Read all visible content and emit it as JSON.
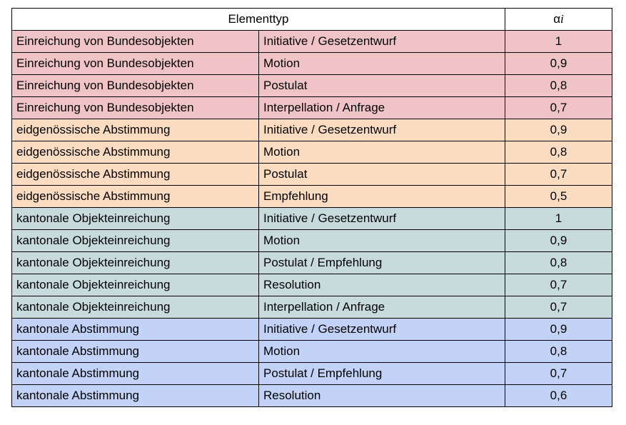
{
  "header": {
    "element_type": "Elementtyp",
    "alpha": "α",
    "alpha_sub": "i"
  },
  "groups": [
    {
      "name": "Einreichung von Bundesobjekten",
      "color": "#f0c4c6"
    },
    {
      "name": "eidgenössische Abstimmung",
      "color": "#fbdcc0"
    },
    {
      "name": "kantonale Objekteinreichung",
      "color": "#c8dbdc"
    },
    {
      "name": "kantonale Abstimmung",
      "color": "#c2d3f7"
    }
  ],
  "rows": [
    {
      "group": 0,
      "category": "Einreichung von Bundesobjekten",
      "type": "Initiative / Gesetzentwurf",
      "alpha": "1"
    },
    {
      "group": 0,
      "category": "Einreichung von Bundesobjekten",
      "type": "Motion",
      "alpha": "0,9"
    },
    {
      "group": 0,
      "category": "Einreichung von Bundesobjekten",
      "type": "Postulat",
      "alpha": "0,8"
    },
    {
      "group": 0,
      "category": "Einreichung von Bundesobjekten",
      "type": "Interpellation / Anfrage",
      "alpha": "0,7"
    },
    {
      "group": 1,
      "category": "eidgenössische Abstimmung",
      "type": "Initiative / Gesetzentwurf",
      "alpha": "0,9"
    },
    {
      "group": 1,
      "category": "eidgenössische Abstimmung",
      "type": "Motion",
      "alpha": "0,8"
    },
    {
      "group": 1,
      "category": "eidgenössische Abstimmung",
      "type": "Postulat",
      "alpha": "0,7"
    },
    {
      "group": 1,
      "category": "eidgenössische Abstimmung",
      "type": "Empfehlung",
      "alpha": "0,5"
    },
    {
      "group": 2,
      "category": "kantonale Objekteinreichung",
      "type": "Initiative / Gesetzentwurf",
      "alpha": "1"
    },
    {
      "group": 2,
      "category": "kantonale Objekteinreichung",
      "type": "Motion",
      "alpha": "0,9"
    },
    {
      "group": 2,
      "category": "kantonale Objekteinreichung",
      "type": "Postulat / Empfehlung",
      "alpha": "0,8"
    },
    {
      "group": 2,
      "category": "kantonale Objekteinreichung",
      "type": "Resolution",
      "alpha": "0,7"
    },
    {
      "group": 2,
      "category": "kantonale Objekteinreichung",
      "type": "Interpellation / Anfrage",
      "alpha": "0,7"
    },
    {
      "group": 3,
      "category": "kantonale Abstimmung",
      "type": "Initiative / Gesetzentwurf",
      "alpha": "0,9"
    },
    {
      "group": 3,
      "category": "kantonale Abstimmung",
      "type": "Motion",
      "alpha": "0,8"
    },
    {
      "group": 3,
      "category": "kantonale Abstimmung",
      "type": "Postulat / Empfehlung",
      "alpha": "0,7"
    },
    {
      "group": 3,
      "category": "kantonale Abstimmung",
      "type": "Resolution",
      "alpha": "0,6"
    }
  ]
}
